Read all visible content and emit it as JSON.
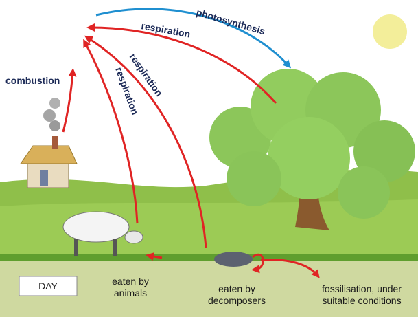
{
  "labels": {
    "photosynthesis": "photosynthesis",
    "respiration": [
      "respiration",
      "respiration",
      "respiration"
    ],
    "combustion": "combustion",
    "day": "DAY",
    "eaten_by_animals": [
      "eaten by",
      "animals"
    ],
    "eaten_by_decomposers": [
      "eaten by",
      "decomposers"
    ],
    "fossilisation": [
      "fossilisation, under",
      "suitable conditions"
    ]
  }
}
